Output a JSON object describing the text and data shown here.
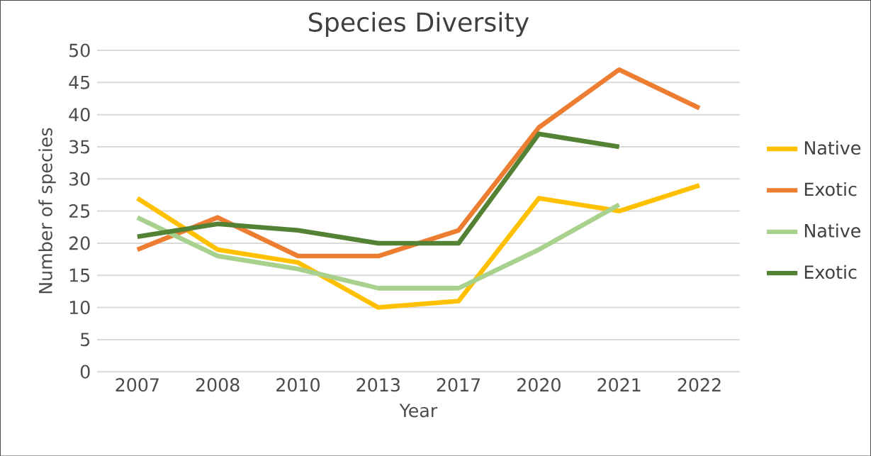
{
  "chart_data": {
    "type": "line",
    "title": "Species Diversity",
    "xlabel": "Year",
    "ylabel": "Number of species",
    "categories": [
      "2007",
      "2008",
      "2010",
      "2013",
      "2017",
      "2020",
      "2021",
      "2022"
    ],
    "series": [
      {
        "name": "Native",
        "color": "#ffc000",
        "values": [
          27,
          19,
          17,
          10,
          11,
          27,
          25,
          29
        ]
      },
      {
        "name": "Exotic",
        "color": "#ed7d31",
        "values": [
          19,
          24,
          18,
          18,
          22,
          38,
          47,
          41
        ]
      },
      {
        "name": "Native",
        "color": "#a9d18e",
        "values": [
          24,
          18,
          16,
          13,
          13,
          19,
          26,
          null
        ]
      },
      {
        "name": "Exotic",
        "color": "#548235",
        "values": [
          21,
          23,
          22,
          20,
          20,
          37,
          35,
          null
        ]
      }
    ],
    "ylim": [
      0,
      50
    ],
    "yticks": [
      0,
      5,
      10,
      15,
      20,
      25,
      30,
      35,
      40,
      45,
      50
    ],
    "grid": "y",
    "legend": "right",
    "marker": "none",
    "line_style": "solid"
  }
}
